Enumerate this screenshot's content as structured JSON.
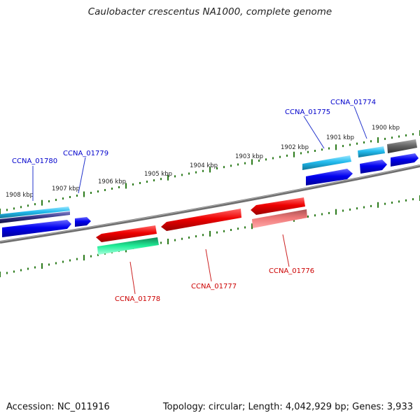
{
  "title": "Caulobacter crescentus NA1000, complete genome",
  "footer": {
    "accession": "Accession: NC_011916",
    "summary": "Topology: circular; Length: 4,042,929 bp; Genes: 3,933"
  },
  "scale_labels": [
    "1908 kbp",
    "1907 kbp",
    "1906 kbp",
    "1905 kbp",
    "1904 kbp",
    "1903 kbp",
    "1902 kbp",
    "1901 kbp",
    "1900 kbp"
  ],
  "gene_labels": {
    "CCNA_01780": "CCNA_01780",
    "CCNA_01779": "CCNA_01779",
    "CCNA_01775": "CCNA_01775",
    "CCNA_01774": "CCNA_01774",
    "CCNA_01778": "CCNA_01778",
    "CCNA_01777": "CCNA_01777",
    "CCNA_01776": "CCNA_01776"
  },
  "colors": {
    "backbone": "#808080",
    "tick": "#2a7a1a",
    "cds_forward": "#0000ee",
    "cds_forward_alt": "#22bbee",
    "cds_reverse": "#ee0000",
    "rna_pink": "#ee7777",
    "misc_green": "#22ee99",
    "misc_gray": "#666666"
  }
}
